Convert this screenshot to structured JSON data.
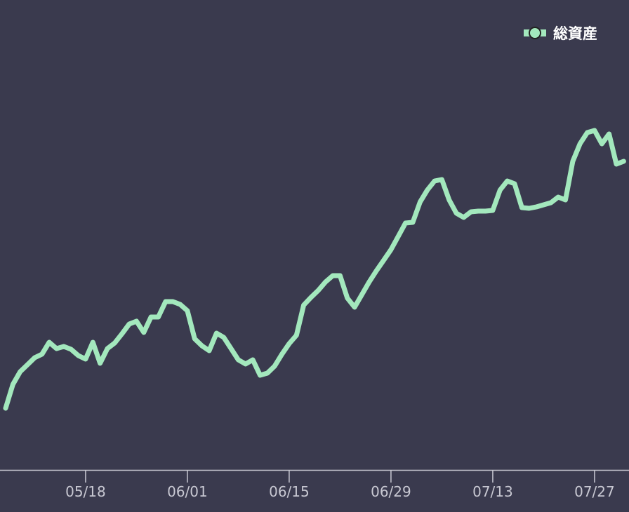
{
  "chart_data": {
    "type": "line",
    "x": [
      "05/07",
      "05/08",
      "05/09",
      "05/10",
      "05/11",
      "05/12",
      "05/13",
      "05/14",
      "05/15",
      "05/16",
      "05/17",
      "05/18",
      "05/19",
      "05/20",
      "05/21",
      "05/22",
      "05/23",
      "05/24",
      "05/25",
      "05/26",
      "05/27",
      "05/28",
      "05/29",
      "05/30",
      "05/31",
      "06/01",
      "06/02",
      "06/03",
      "06/04",
      "06/05",
      "06/06",
      "06/07",
      "06/08",
      "06/09",
      "06/10",
      "06/11",
      "06/12",
      "06/13",
      "06/14",
      "06/15",
      "06/16",
      "06/17",
      "06/18",
      "06/19",
      "06/20",
      "06/21",
      "06/22",
      "06/23",
      "06/24",
      "06/25",
      "06/26",
      "06/27",
      "06/28",
      "06/29",
      "06/30",
      "07/01",
      "07/02",
      "07/03",
      "07/04",
      "07/05",
      "07/06",
      "07/07",
      "07/08",
      "07/09",
      "07/10",
      "07/11",
      "07/12",
      "07/13",
      "07/14",
      "07/15",
      "07/16",
      "07/17",
      "07/18",
      "07/19",
      "07/20",
      "07/21",
      "07/22",
      "07/23",
      "07/24",
      "07/25",
      "07/26",
      "07/27",
      "07/28",
      "07/29",
      "07/30",
      "07/31"
    ],
    "series": [
      {
        "name": "総資産",
        "color": "#a3e8bd",
        "values": [
          88,
          122,
          140,
          150,
          160,
          165,
          182,
          173,
          176,
          172,
          163,
          158,
          182,
          152,
          173,
          181,
          194,
          208,
          212,
          196,
          218,
          218,
          240,
          240,
          236,
          227,
          187,
          177,
          170,
          195,
          189,
          173,
          157,
          151,
          157,
          135,
          138,
          148,
          165,
          180,
          192,
          235,
          246,
          256,
          268,
          277,
          277,
          245,
          232,
          250,
          268,
          284,
          299,
          314,
          333,
          352,
          353,
          382,
          399,
          412,
          414,
          385,
          366,
          360,
          368,
          369,
          369,
          370,
          399,
          412,
          408,
          374,
          373,
          375,
          378,
          381,
          389,
          385,
          440,
          465,
          481,
          484,
          465,
          479,
          436,
          440
        ]
      }
    ],
    "xticks": [
      "05/18",
      "06/01",
      "06/15",
      "06/29",
      "07/13",
      "07/27"
    ],
    "ylim": [
      0,
      670
    ],
    "legend": "top-right"
  }
}
